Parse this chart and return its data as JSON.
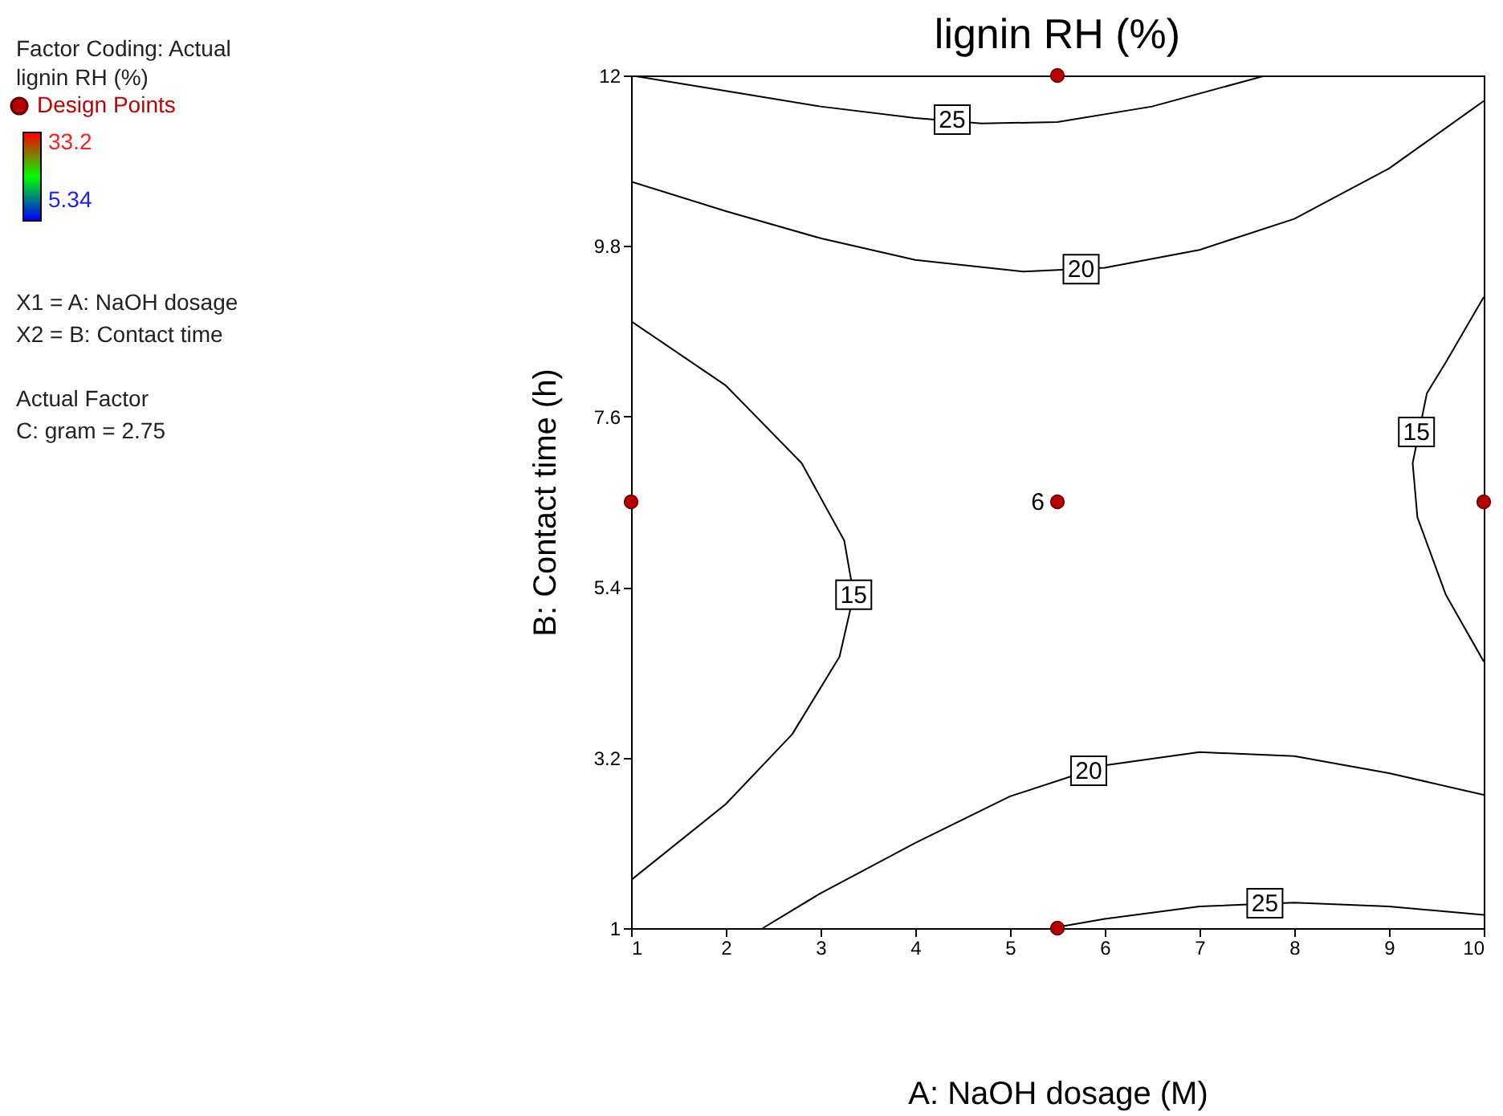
{
  "chart_data": {
    "type": "scatter",
    "title": "lignin RH (%)",
    "xlabel": "A: NaOH dosage (M)",
    "ylabel": "B: Contact time (h)",
    "xlim": [
      1,
      10
    ],
    "xticks": [
      1,
      2,
      3,
      4,
      5,
      6,
      7,
      8,
      9,
      10
    ],
    "ylim": [
      1,
      12
    ],
    "yticks": [
      1,
      3.2,
      5.4,
      7.6,
      9.8,
      12
    ],
    "series": [
      {
        "type": "line",
        "color": "#000000",
        "x": [
          1,
          2,
          3,
          4,
          4.7,
          5.5,
          6.5,
          7.7
        ],
        "values": [
          12,
          11.8,
          11.6,
          11.45,
          11.38,
          11.4,
          11.6,
          12
        ]
      },
      {
        "type": "line",
        "color": "#000000",
        "x": [
          1,
          2,
          3,
          4,
          5.14,
          6,
          7,
          8,
          9,
          10
        ],
        "values": [
          10.63,
          10.25,
          9.9,
          9.62,
          9.47,
          9.52,
          9.75,
          10.15,
          10.8,
          11.67
        ]
      },
      {
        "type": "line",
        "color": "#000000",
        "x": [
          1,
          2,
          2.8,
          3.25,
          3.35,
          3.2,
          2.7,
          2,
          1
        ],
        "values": [
          8.83,
          8,
          7,
          6,
          5.3,
          4.5,
          3.5,
          2.6,
          1.62
        ]
      },
      {
        "type": "line",
        "color": "#000000",
        "x": [
          10,
          9.6,
          9.4,
          9.25,
          9.3,
          9.6,
          10
        ],
        "values": [
          9.14,
          8.3,
          7.9,
          7,
          6.3,
          5.3,
          4.44
        ]
      },
      {
        "type": "line",
        "color": "#000000",
        "x": [
          2.39,
          3,
          4,
          5,
          6,
          7,
          8,
          9,
          10
        ],
        "values": [
          1,
          1.45,
          2.1,
          2.7,
          3.1,
          3.27,
          3.22,
          3,
          2.72
        ]
      },
      {
        "type": "line",
        "color": "#000000",
        "x": [
          5.44,
          6,
          7,
          8,
          9,
          10
        ],
        "values": [
          1,
          1.12,
          1.28,
          1.33,
          1.28,
          1.17
        ]
      },
      {
        "type": "scatter",
        "name": "Design Points",
        "color": "#b80000",
        "marker": "circle",
        "x": [
          1,
          5.5,
          10,
          5.5,
          5.5
        ],
        "values": [
          6.5,
          6.5,
          6.5,
          1,
          12
        ]
      }
    ],
    "annotations": [
      "Factor Coding: Actual",
      "lignin RH (%)",
      "33.2",
      "5.34",
      "X1 = A: NaOH dosage",
      "X2 = B: Contact time",
      "Actual Factor",
      "C: gram = 2.75",
      {
        "text": "25",
        "x": 4.39,
        "y": 11.43
      },
      {
        "text": "20",
        "x": 5.75,
        "y": 9.5
      },
      {
        "text": "15",
        "x": 3.35,
        "y": 5.3
      },
      {
        "text": "15",
        "x": 9.29,
        "y": 7.4
      },
      {
        "text": "20",
        "x": 5.83,
        "y": 3.03
      },
      {
        "text": "25",
        "x": 7.69,
        "y": 1.32
      },
      {
        "text": "6",
        "x": 5.5,
        "y": 6.5
      }
    ],
    "grid": false
  }
}
